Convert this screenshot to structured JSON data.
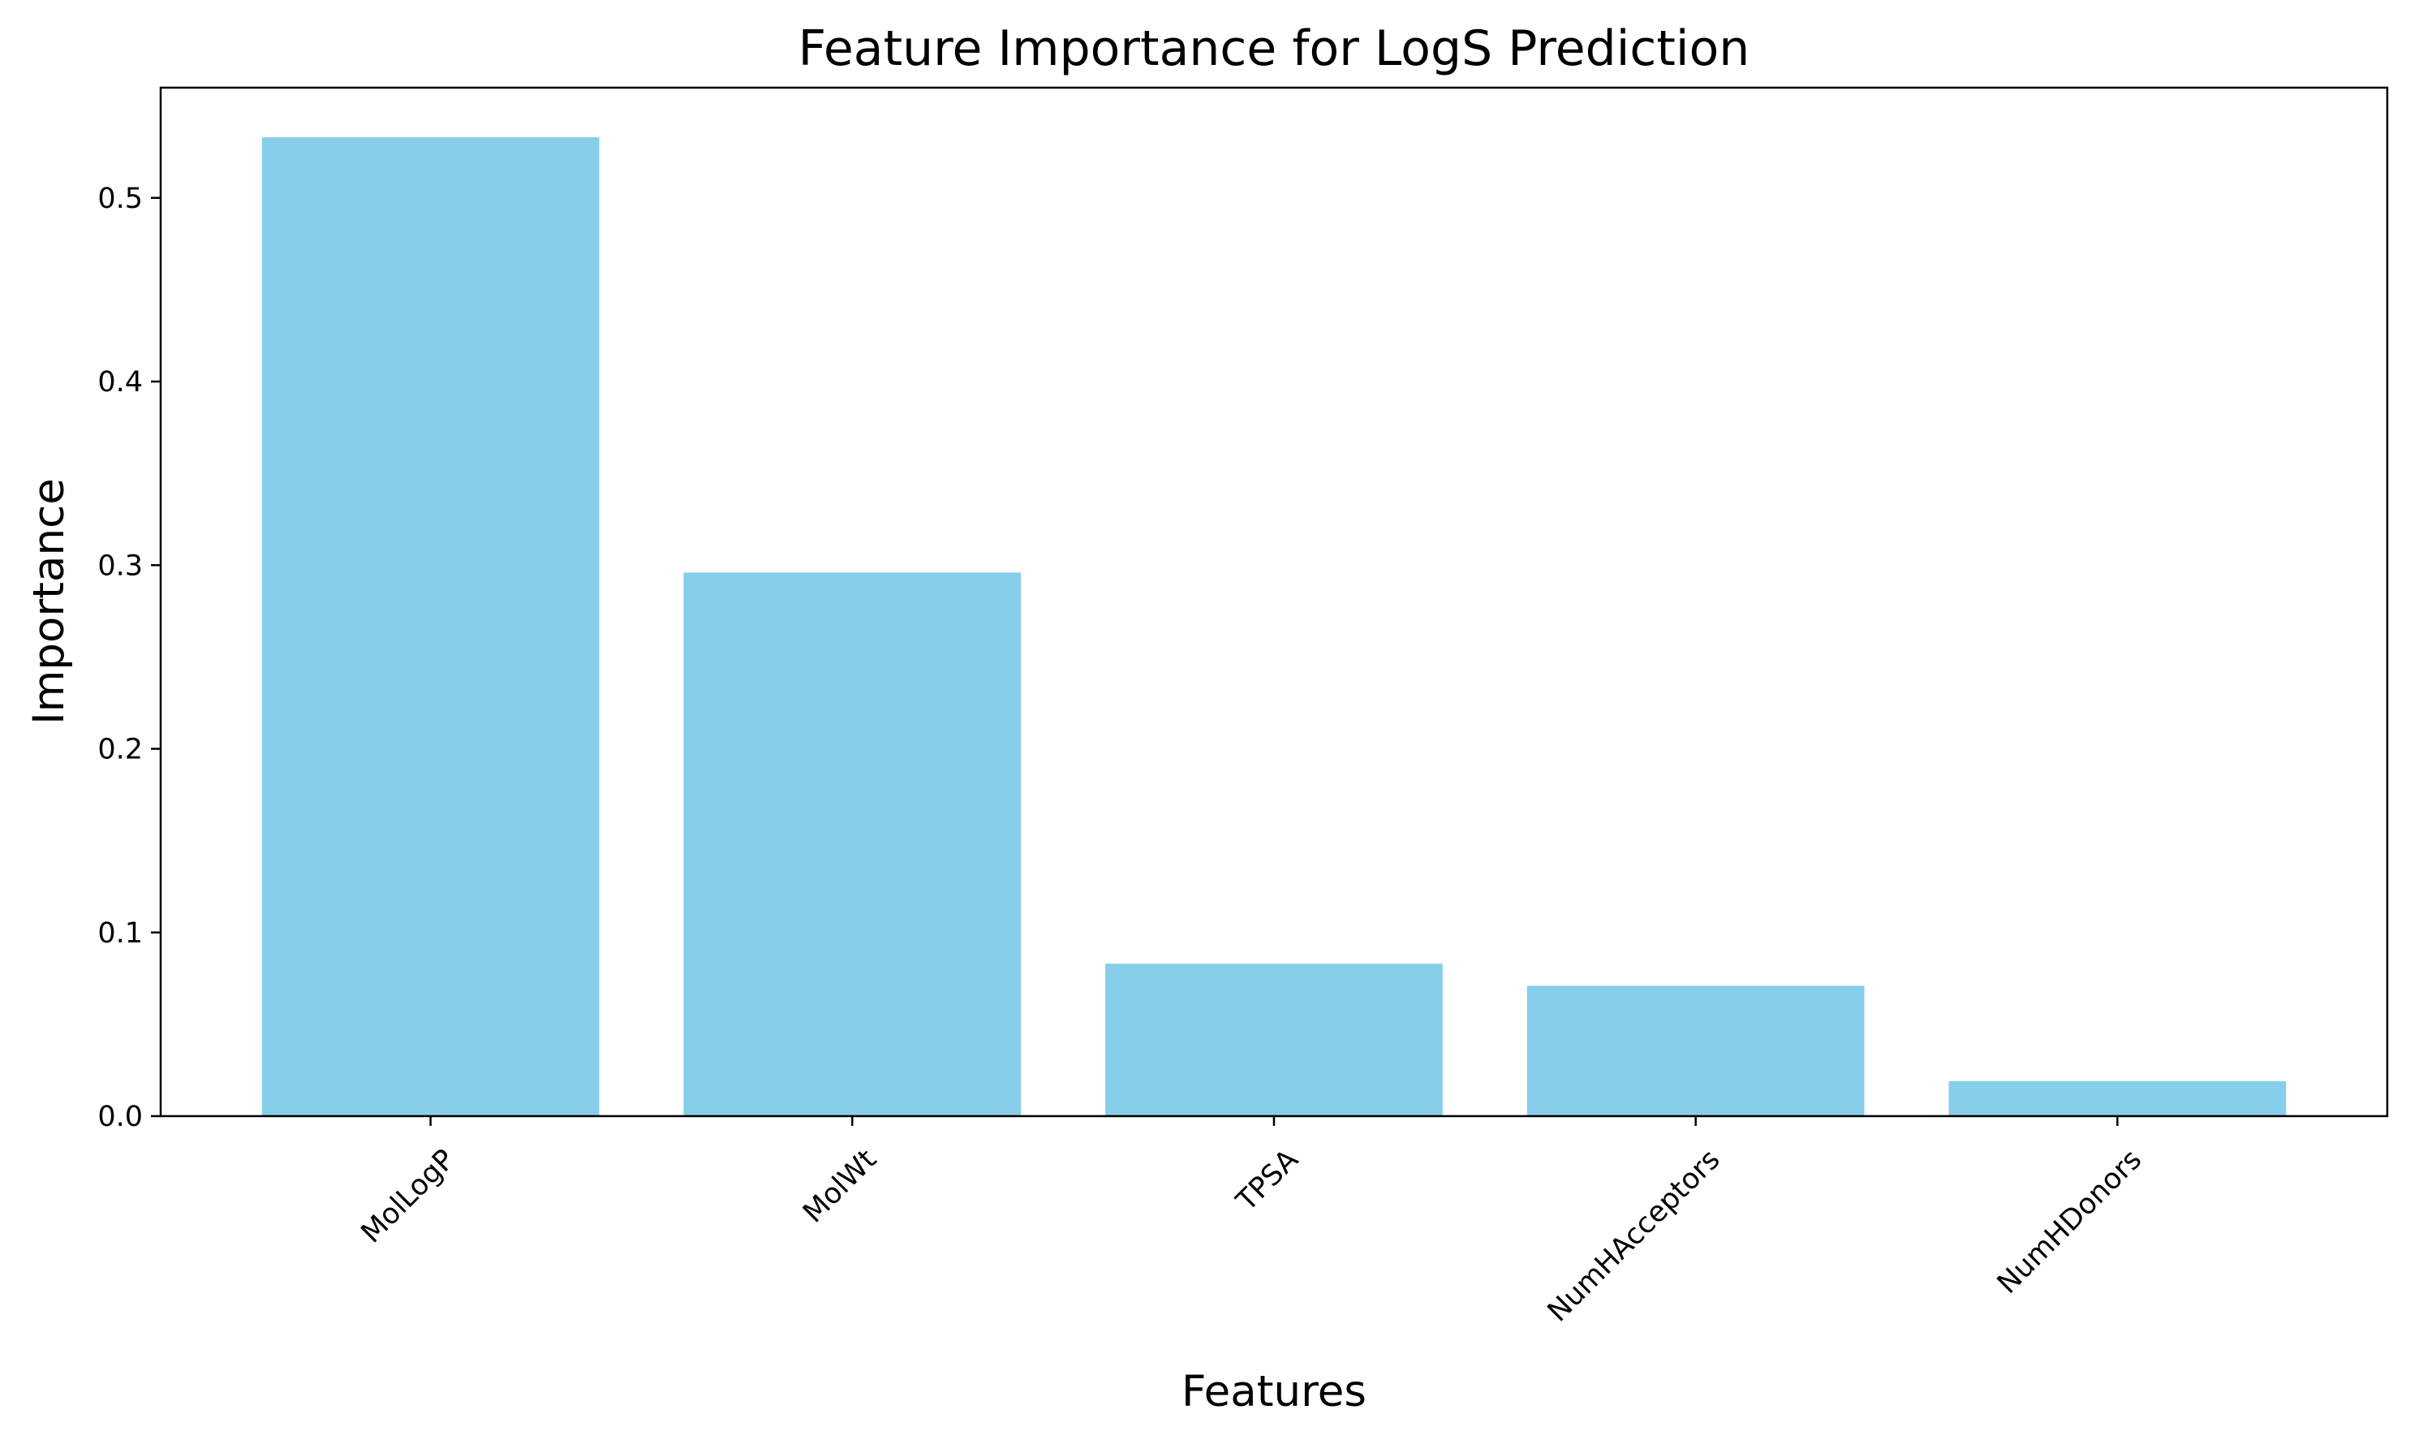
{
  "chart_data": {
    "type": "bar",
    "title": "Feature Importance for LogS Prediction",
    "xlabel": "Features",
    "ylabel": "Importance",
    "categories": [
      "MolLogP",
      "MolWt",
      "TPSA",
      "NumHAcceptors",
      "NumHDonors"
    ],
    "values": [
      0.533,
      0.296,
      0.083,
      0.071,
      0.019
    ],
    "ylim": [
      0,
      0.56
    ],
    "yticks": [
      0.0,
      0.1,
      0.2,
      0.3,
      0.4,
      0.5
    ],
    "ytick_labels": [
      "0.0",
      "0.1",
      "0.2",
      "0.3",
      "0.4",
      "0.5"
    ],
    "bar_color": "#87CEEB",
    "grid": false,
    "legend": "none"
  }
}
